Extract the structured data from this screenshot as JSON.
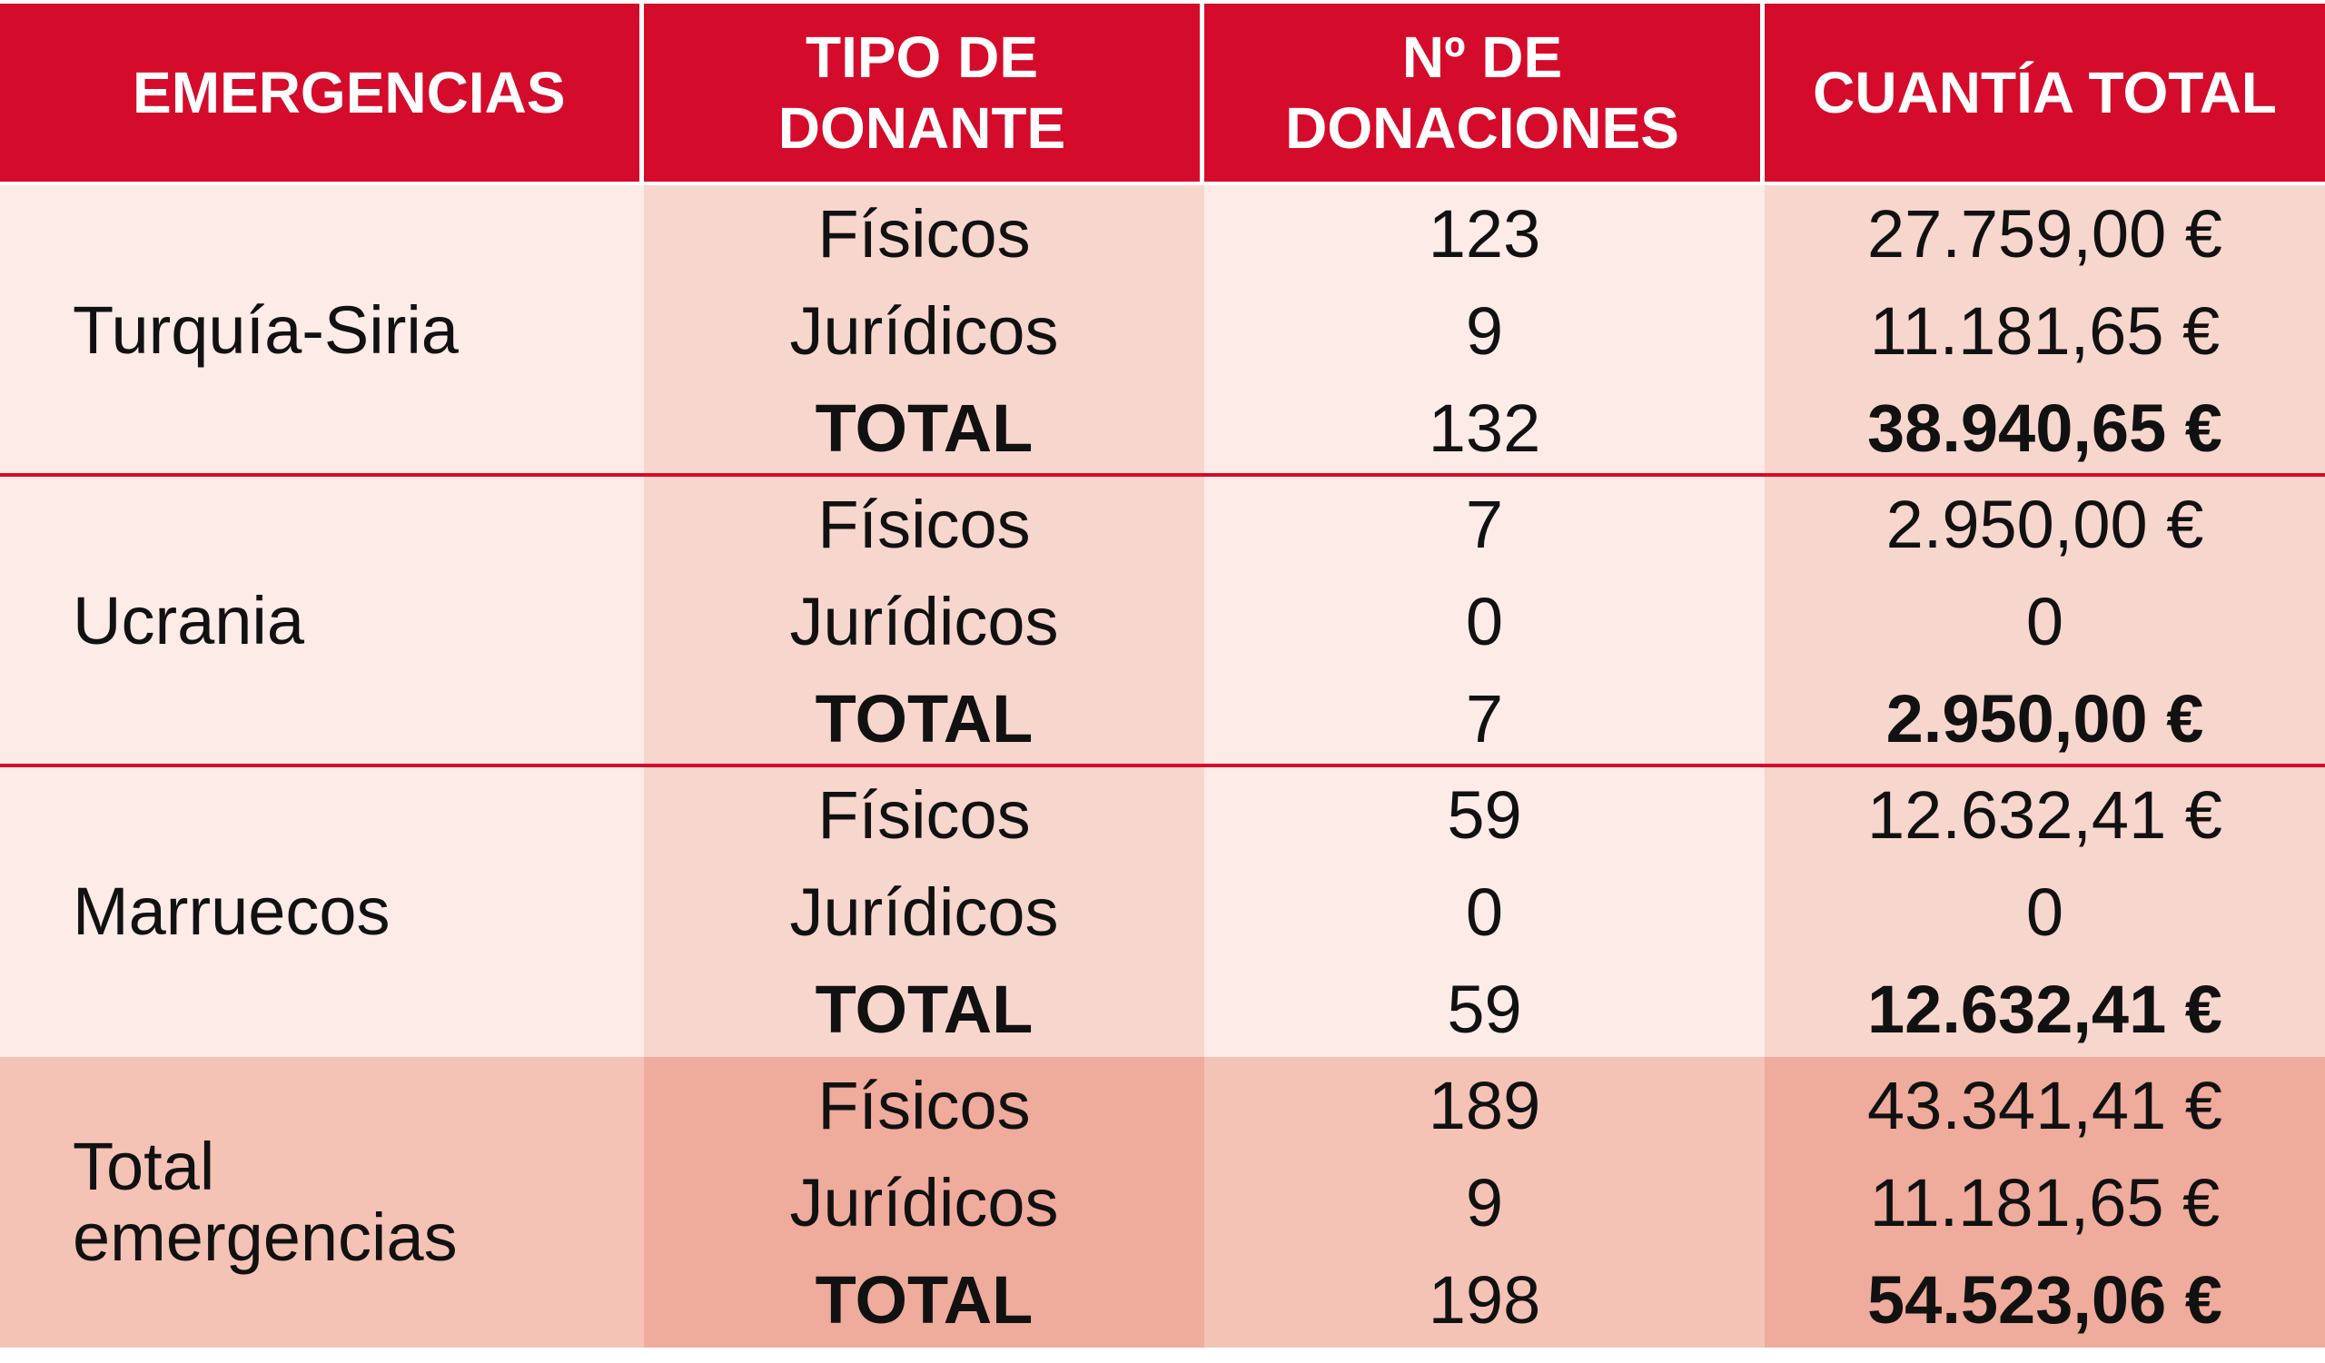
{
  "headers": {
    "emergencias": "EMERGENCIAS",
    "tipo_donante": "TIPO DE\nDONANTE",
    "num_donaciones": "Nº DE\nDONACIONES",
    "cuantia_total": "CUANTÍA TOTAL"
  },
  "groups": [
    {
      "name": "Turquía-Siria",
      "rows": [
        {
          "tipo": "Físicos",
          "num": "123",
          "cuantia": "27.759,00 €"
        },
        {
          "tipo": "Jurídicos",
          "num": "9",
          "cuantia": "11.181,65 €"
        },
        {
          "tipo": "TOTAL",
          "num": "132",
          "cuantia": "38.940,65 €"
        }
      ]
    },
    {
      "name": "Ucrania",
      "rows": [
        {
          "tipo": "Físicos",
          "num": "7",
          "cuantia": "2.950,00 €"
        },
        {
          "tipo": "Jurídicos",
          "num": "0",
          "cuantia": "0"
        },
        {
          "tipo": "TOTAL",
          "num": "7",
          "cuantia": "2.950,00 €"
        }
      ]
    },
    {
      "name": "Marruecos",
      "rows": [
        {
          "tipo": "Físicos",
          "num": "59",
          "cuantia": "12.632,41 €"
        },
        {
          "tipo": "Jurídicos",
          "num": "0",
          "cuantia": "0"
        },
        {
          "tipo": "TOTAL",
          "num": "59",
          "cuantia": "12.632,41 €"
        }
      ]
    },
    {
      "name": "Total\nemergencias",
      "rows": [
        {
          "tipo": "Físicos",
          "num": "189",
          "cuantia": "43.341,41 €"
        },
        {
          "tipo": "Jurídicos",
          "num": "9",
          "cuantia": "11.181,65 €"
        },
        {
          "tipo": "TOTAL",
          "num": "198",
          "cuantia": "54.523,06 €"
        }
      ]
    }
  ],
  "colors": {
    "header_bg": "#d50b2c",
    "row_light": "#fcebe6",
    "row_light_alt": "#f7d6cd",
    "row_dark": "#f4c3b6",
    "row_dark_alt": "#efab9c"
  }
}
